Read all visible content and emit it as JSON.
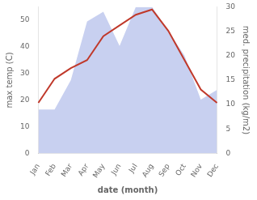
{
  "chart_data": {
    "type": "line",
    "categories": [
      "Jan",
      "Feb",
      "Mar",
      "Apr",
      "May",
      "Jun",
      "Jul",
      "Aug",
      "Sep",
      "Oct",
      "Nov",
      "Dec"
    ],
    "series": [
      {
        "type": "area",
        "axis": "y2",
        "color": "#c8d0f0",
        "values": [
          9,
          9,
          15,
          27,
          29,
          22,
          30,
          30,
          25,
          20,
          11,
          13
        ]
      },
      {
        "type": "line",
        "axis": "y",
        "color": "#c0392b",
        "values": [
          19,
          28,
          32,
          35,
          44,
          48,
          52,
          54,
          46,
          35,
          24,
          19
        ]
      }
    ],
    "x_label": "date (month)",
    "y_label": "max temp (C)",
    "y2_label": "med. precipitation (kg/m2)",
    "ylim": [
      0,
      55
    ],
    "yticks": [
      0,
      10,
      20,
      30,
      40,
      50
    ],
    "y2lim": [
      0,
      30
    ],
    "y2ticks": [
      0,
      5,
      10,
      15,
      20,
      25,
      30
    ],
    "grid": false
  }
}
